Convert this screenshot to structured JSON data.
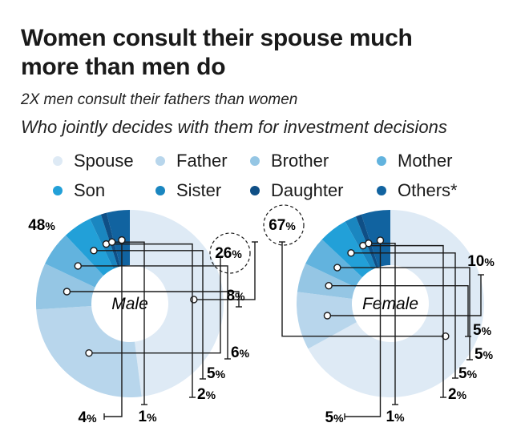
{
  "header": {
    "title": "Women consult their spouse much more than men do",
    "subtitle": "2X men consult their fathers than women",
    "question": "Who jointly decides with them for investment decisions"
  },
  "colors": {
    "Spouse": "#deeaf5",
    "Father": "#b8d6ec",
    "Brother": "#95c6e4",
    "Mother": "#62b3de",
    "Son": "#22a0d8",
    "Sister": "#1a86c0",
    "Daughter": "#0f4f86",
    "Others*": "#1163a0"
  },
  "chart_data": [
    {
      "type": "pie",
      "donut": true,
      "center_label": "Male",
      "categories": [
        "Spouse",
        "Father",
        "Brother",
        "Mother",
        "Son",
        "Sister",
        "Daughter",
        "Others*"
      ],
      "values": [
        48,
        26,
        8,
        6,
        5,
        2,
        1,
        4
      ],
      "labels": [
        "48",
        "26",
        "8",
        "6",
        "5",
        "2",
        "1",
        "4"
      ],
      "unit": "%",
      "highlight": "Father",
      "legend": "top"
    },
    {
      "type": "pie",
      "donut": true,
      "center_label": "Female",
      "categories": [
        "Spouse",
        "Father",
        "Brother",
        "Mother",
        "Son",
        "Sister",
        "Daughter",
        "Others*"
      ],
      "values": [
        67,
        10,
        5,
        5,
        5,
        2,
        1,
        5
      ],
      "labels": [
        "67",
        "10",
        "5",
        "5",
        "5",
        "2",
        "1",
        "5"
      ],
      "unit": "%",
      "highlight": "Spouse",
      "legend": "top"
    }
  ]
}
